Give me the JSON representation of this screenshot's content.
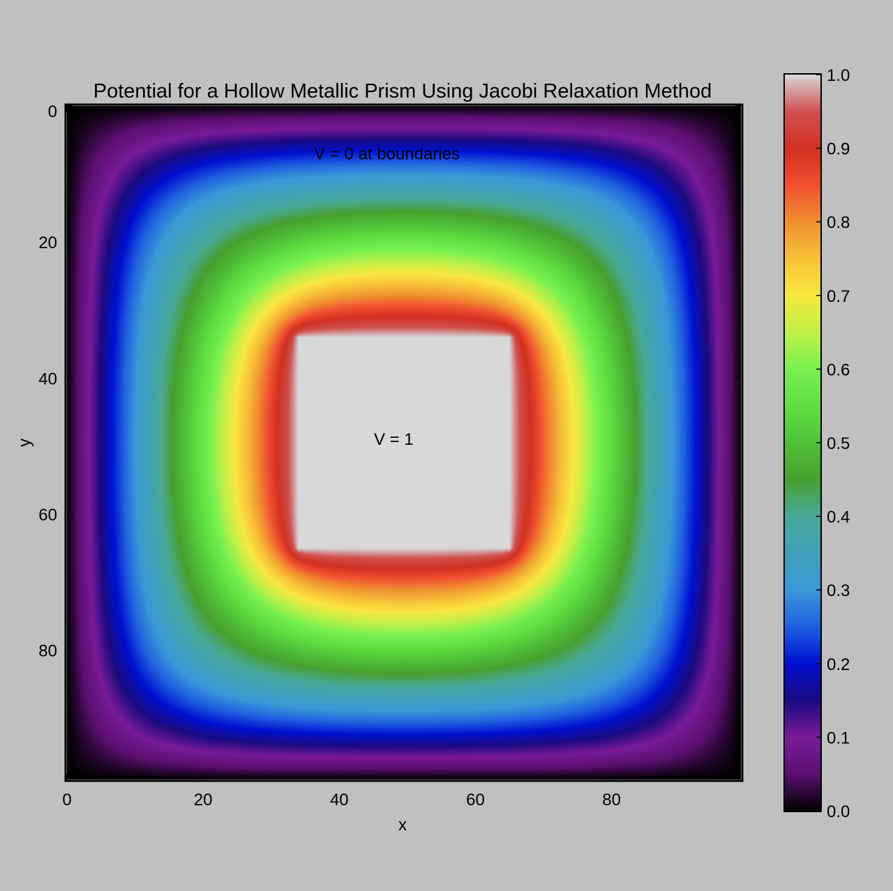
{
  "chart_data": {
    "type": "heatmap",
    "title": "Potential for a Hollow Metallic Prism Using Jacobi Relaxation Method",
    "xlabel": "x",
    "ylabel": "y",
    "xlim": [
      0,
      99
    ],
    "ylim": [
      0,
      99
    ],
    "y_inverted": true,
    "x_ticks": [
      0,
      20,
      40,
      60,
      80
    ],
    "y_ticks": [
      0,
      20,
      40,
      60,
      80
    ],
    "x_tick_labels": [
      "0",
      "20",
      "40",
      "60",
      "80"
    ],
    "y_tick_labels": [
      "0",
      "20",
      "40",
      "60",
      "80"
    ],
    "grid_size": [
      100,
      100
    ],
    "boundary_potential": 0,
    "inner_conductor": {
      "x_range": [
        34,
        65
      ],
      "y_range": [
        34,
        65
      ],
      "potential": 1
    },
    "bulk_potential": 0.5,
    "annotations": [
      {
        "text": "V = 0 at boundaries",
        "x": 47,
        "y": 7
      },
      {
        "text": "V = 1",
        "x": 48,
        "y": 49
      }
    ],
    "colorbar": {
      "colormap": "rainbow",
      "range": [
        0.0,
        1.0
      ],
      "ticks": [
        0.0,
        0.1,
        0.2,
        0.3,
        0.4,
        0.5,
        0.6,
        0.7,
        0.8,
        0.9,
        1.0
      ],
      "tick_labels": [
        "0.0",
        "0.1",
        "0.2",
        "0.3",
        "0.4",
        "0.5",
        "0.6",
        "0.7",
        "0.8",
        "0.9",
        "1.0"
      ],
      "placement": "right",
      "stops": [
        {
          "v": 0.0,
          "color": "#000000"
        },
        {
          "v": 0.05,
          "color": "#5a1070"
        },
        {
          "v": 0.1,
          "color": "#7a1a98"
        },
        {
          "v": 0.15,
          "color": "#1a0a80"
        },
        {
          "v": 0.2,
          "color": "#0010d0"
        },
        {
          "v": 0.25,
          "color": "#2060e0"
        },
        {
          "v": 0.3,
          "color": "#3a98d8"
        },
        {
          "v": 0.35,
          "color": "#3ea0b8"
        },
        {
          "v": 0.4,
          "color": "#48a898"
        },
        {
          "v": 0.45,
          "color": "#48a030"
        },
        {
          "v": 0.5,
          "color": "#50c038"
        },
        {
          "v": 0.55,
          "color": "#60e040"
        },
        {
          "v": 0.6,
          "color": "#78f050"
        },
        {
          "v": 0.65,
          "color": "#c0f048"
        },
        {
          "v": 0.7,
          "color": "#f8e840"
        },
        {
          "v": 0.75,
          "color": "#f8c038"
        },
        {
          "v": 0.8,
          "color": "#f09030"
        },
        {
          "v": 0.85,
          "color": "#f05030"
        },
        {
          "v": 0.9,
          "color": "#d03020"
        },
        {
          "v": 0.95,
          "color": "#d05050"
        },
        {
          "v": 1.0,
          "color": "#d8d8d8"
        }
      ]
    }
  }
}
